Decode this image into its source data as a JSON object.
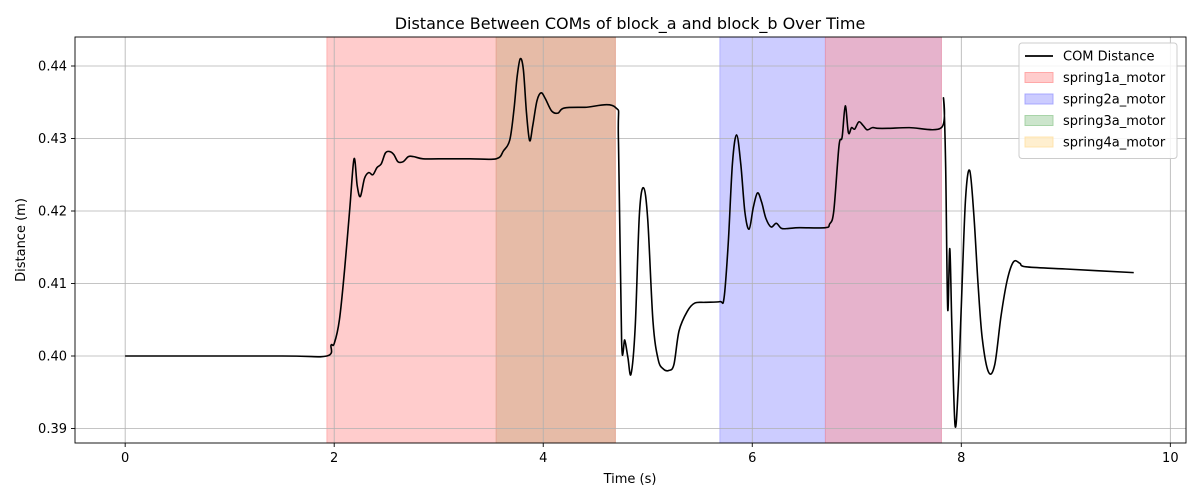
{
  "chart_data": {
    "type": "line",
    "title": "Distance Between COMs of block_a and block_b Over Time",
    "xlabel": "Time (s)",
    "ylabel": "Distance (m)",
    "xlim": [
      -0.48,
      10.15
    ],
    "ylim": [
      0.388,
      0.444
    ],
    "xticks": [
      0,
      2,
      4,
      6,
      8,
      10
    ],
    "yticks": [
      0.39,
      0.4,
      0.41,
      0.42,
      0.43,
      0.44
    ],
    "xtick_labels": [
      "0",
      "2",
      "4",
      "6",
      "8",
      "10"
    ],
    "ytick_labels": [
      "0.39",
      "0.40",
      "0.41",
      "0.42",
      "0.43",
      "0.44"
    ],
    "grid": true,
    "legend_position": "top-right",
    "legend": [
      {
        "label": "COM Distance",
        "kind": "line",
        "color": "#000000"
      },
      {
        "label": "spring1a_motor",
        "kind": "patch",
        "color": "#ff9999"
      },
      {
        "label": "spring2a_motor",
        "kind": "patch",
        "color": "#9999ff"
      },
      {
        "label": "spring3a_motor",
        "kind": "patch",
        "color": "#99cc99"
      },
      {
        "label": "spring4a_motor",
        "kind": "patch",
        "color": "#ffe0a0"
      }
    ],
    "spans": [
      {
        "name": "spring1a_motor",
        "x0": 1.93,
        "x1": 3.55,
        "color": "#ff9999"
      },
      {
        "name": "spring4a_motor",
        "x0": 3.55,
        "x1": 4.69,
        "color": "#ffe0a0"
      },
      {
        "name": "spring3a_motor",
        "x0": 3.55,
        "x1": 4.69,
        "color": "#99cc99"
      },
      {
        "name": "spring1a_motor",
        "x0": 3.55,
        "x1": 4.69,
        "color": "#ff9999"
      },
      {
        "name": "spring2a_motor",
        "x0": 5.69,
        "x1": 6.7,
        "color": "#9999ff"
      },
      {
        "name": "spring2a_motor",
        "x0": 6.7,
        "x1": 7.81,
        "color": "#9999ff"
      },
      {
        "name": "spring1a_motor",
        "x0": 6.7,
        "x1": 7.81,
        "color": "#ff9999"
      }
    ],
    "series": [
      {
        "name": "COM Distance",
        "color": "#000000",
        "x": [
          0,
          1.5,
          1.93,
          1.97,
          2.0,
          2.05,
          2.1,
          2.15,
          2.19,
          2.22,
          2.25,
          2.29,
          2.33,
          2.37,
          2.41,
          2.45,
          2.49,
          2.53,
          2.57,
          2.61,
          2.66,
          2.71,
          2.76,
          2.85,
          3.0,
          3.3,
          3.55,
          3.62,
          3.68,
          3.72,
          3.75,
          3.78,
          3.81,
          3.84,
          3.87,
          3.9,
          3.94,
          3.98,
          4.02,
          4.08,
          4.14,
          4.2,
          4.4,
          4.69,
          4.72,
          4.75,
          4.78,
          4.81,
          4.84,
          4.88,
          4.92,
          4.96,
          5.0,
          5.05,
          5.1,
          5.15,
          5.2,
          5.25,
          5.3,
          5.38,
          5.45,
          5.55,
          5.69,
          5.73,
          5.77,
          5.81,
          5.85,
          5.89,
          5.93,
          5.97,
          6.01,
          6.05,
          6.09,
          6.13,
          6.18,
          6.23,
          6.28,
          6.35,
          6.45,
          6.7,
          6.74,
          6.78,
          6.83,
          6.86,
          6.89,
          6.92,
          6.95,
          6.98,
          7.02,
          7.06,
          7.1,
          7.15,
          7.2,
          7.3,
          7.5,
          7.81,
          7.83,
          7.85,
          7.87,
          7.89,
          7.91,
          7.94,
          7.97,
          8.0,
          8.04,
          8.08,
          8.12,
          8.16,
          8.2,
          8.26,
          8.32,
          8.38,
          8.44,
          8.5,
          8.56,
          8.62,
          9.0,
          9.65
        ],
        "y": [
          0.4,
          0.4,
          0.4,
          0.4015,
          0.4017,
          0.405,
          0.412,
          0.4205,
          0.4272,
          0.4235,
          0.422,
          0.4245,
          0.4253,
          0.425,
          0.426,
          0.4265,
          0.428,
          0.4282,
          0.4278,
          0.4268,
          0.4268,
          0.4275,
          0.4275,
          0.4272,
          0.4272,
          0.4272,
          0.4272,
          0.4283,
          0.4298,
          0.434,
          0.4385,
          0.441,
          0.4395,
          0.4335,
          0.4297,
          0.4318,
          0.4352,
          0.4363,
          0.4355,
          0.4338,
          0.4335,
          0.4342,
          0.4343,
          0.4343,
          0.4295,
          0.402,
          0.4022,
          0.3998,
          0.3975,
          0.404,
          0.4195,
          0.4232,
          0.4188,
          0.4048,
          0.3995,
          0.3982,
          0.398,
          0.3988,
          0.4035,
          0.4062,
          0.4073,
          0.4074,
          0.4075,
          0.408,
          0.4155,
          0.4265,
          0.4305,
          0.4265,
          0.4198,
          0.4175,
          0.4205,
          0.4225,
          0.4212,
          0.419,
          0.4178,
          0.4183,
          0.4176,
          0.4176,
          0.4177,
          0.4177,
          0.4182,
          0.42,
          0.429,
          0.4302,
          0.4345,
          0.4308,
          0.4315,
          0.4313,
          0.4323,
          0.4318,
          0.4312,
          0.4315,
          0.4314,
          0.4314,
          0.4315,
          0.4315,
          0.4355,
          0.4265,
          0.4065,
          0.4148,
          0.404,
          0.3905,
          0.3955,
          0.4068,
          0.4215,
          0.4256,
          0.4195,
          0.41,
          0.4025,
          0.3978,
          0.3988,
          0.4055,
          0.4105,
          0.413,
          0.4128,
          0.4123,
          0.412,
          0.4115
        ]
      }
    ]
  }
}
